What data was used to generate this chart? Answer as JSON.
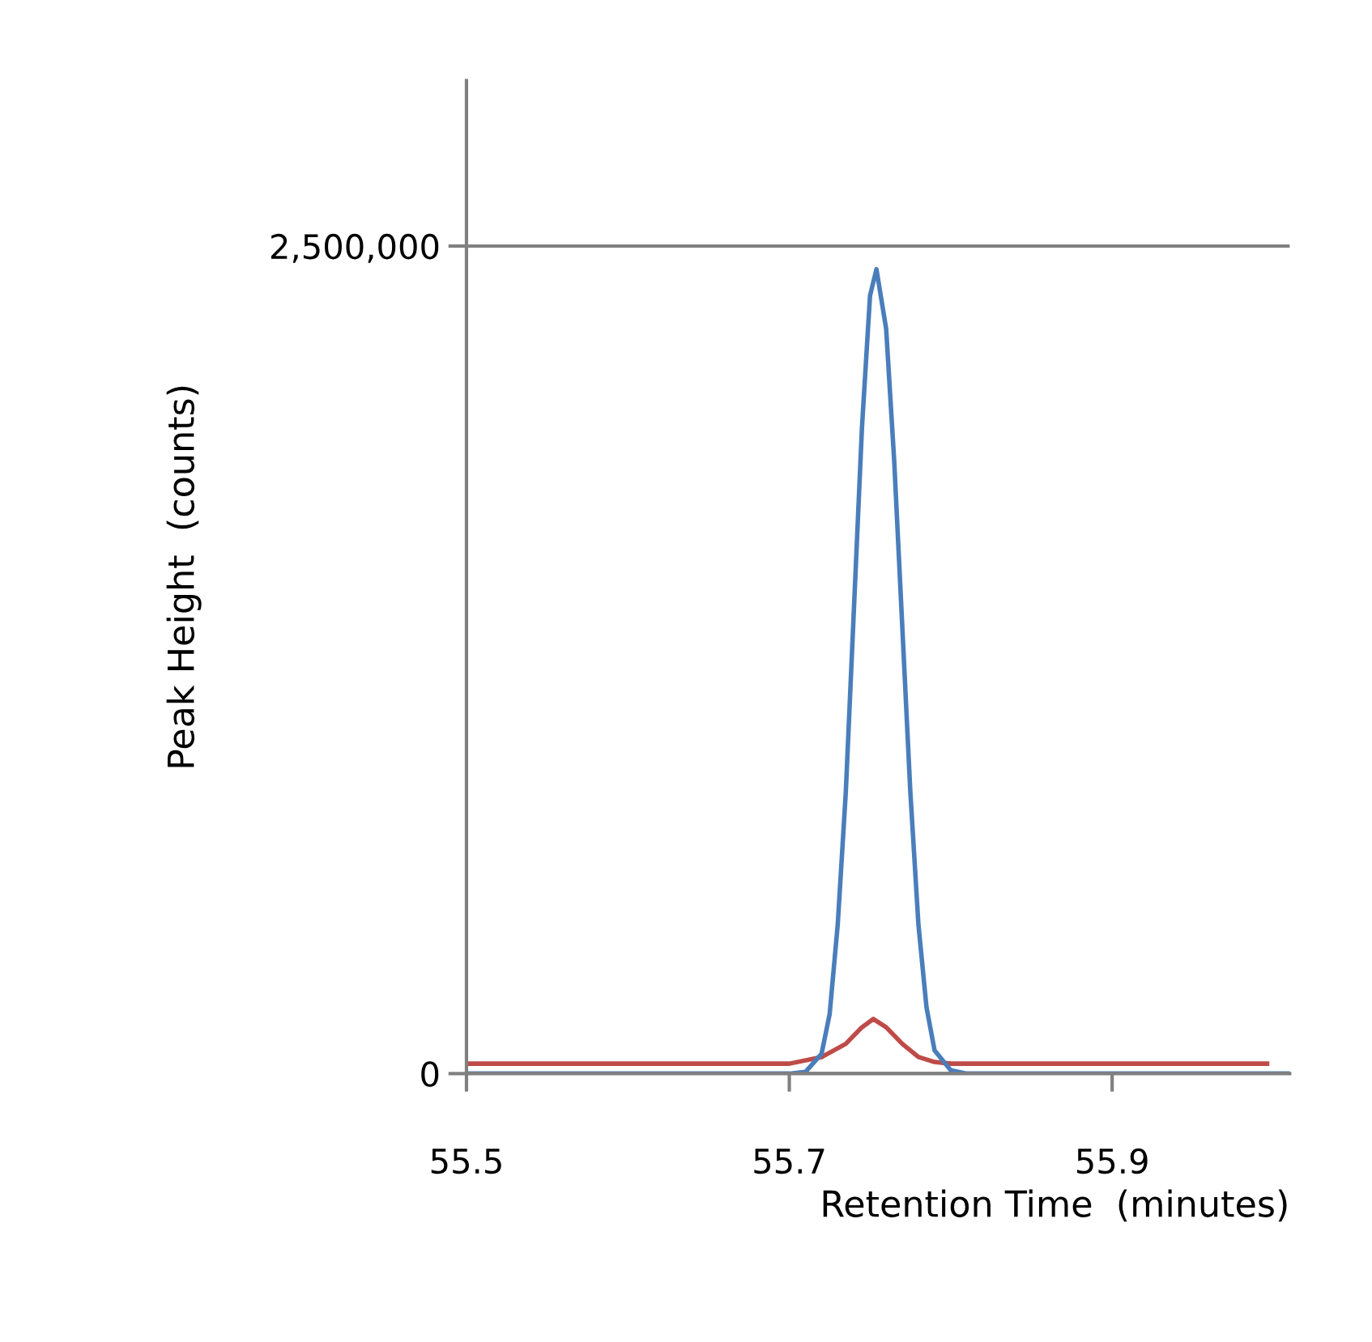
{
  "chart_data": {
    "type": "line",
    "xlabel": "Retention Time  (minutes)",
    "ylabel": "Peak Height  (counts)",
    "xlim": [
      55.5,
      56.01
    ],
    "xticks": [
      55.5,
      55.7,
      55.9
    ],
    "ylim": [
      0,
      3000000
    ],
    "yticks": [
      0,
      {
        "value": 2500000,
        "label": "2,500,000"
      }
    ],
    "grid": "y",
    "legend": false,
    "marker": "none",
    "line_style": "solid",
    "series": [
      {
        "color": "#be4b48",
        "x": [
          55.5,
          55.7,
          55.72,
          55.735,
          55.745,
          55.752,
          55.76,
          55.77,
          55.78,
          55.79,
          55.8,
          55.996
        ],
        "values": [
          30000,
          30000,
          50000,
          90000,
          140000,
          165000,
          140000,
          90000,
          50000,
          35000,
          30000,
          30000
        ]
      },
      {
        "color": "#4a7ebb",
        "x": [
          55.5,
          55.7,
          55.71,
          55.72,
          55.725,
          55.73,
          55.735,
          55.74,
          55.745,
          55.75,
          55.754,
          55.76,
          55.765,
          55.77,
          55.775,
          55.78,
          55.785,
          55.79,
          55.8,
          55.81,
          56.01
        ],
        "values": [
          0,
          0,
          5000,
          60000,
          180000,
          450000,
          850000,
          1400000,
          1950000,
          2350000,
          2430000,
          2250000,
          1850000,
          1350000,
          850000,
          450000,
          200000,
          70000,
          10000,
          0,
          0
        ]
      }
    ]
  }
}
